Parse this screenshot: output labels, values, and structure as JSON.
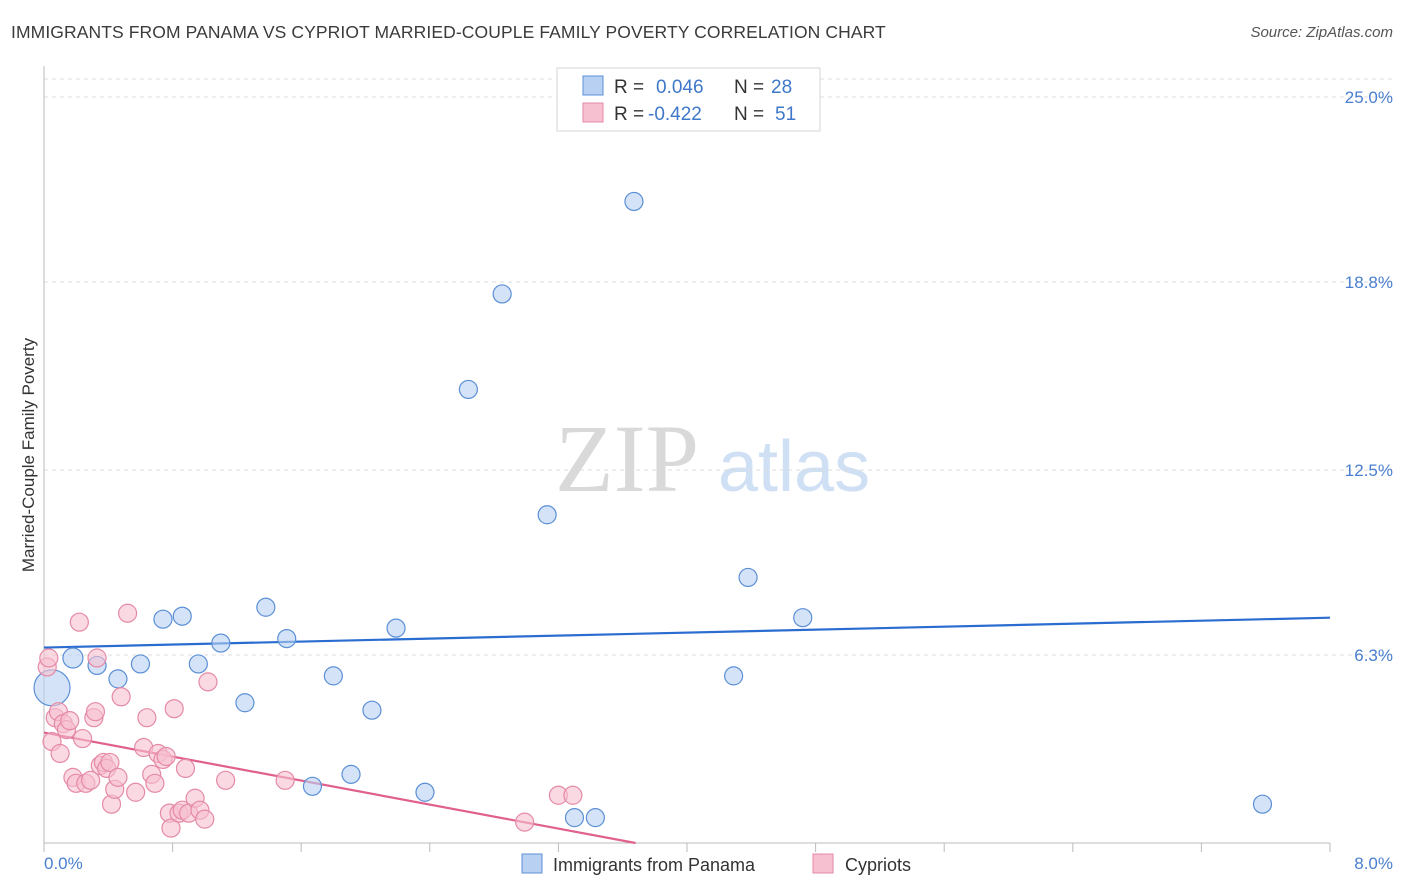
{
  "header": {
    "title": "IMMIGRANTS FROM PANAMA VS CYPRIOT MARRIED-COUPLE FAMILY POVERTY CORRELATION CHART",
    "source": "Source: ZipAtlas.com"
  },
  "watermark": {
    "zip": "ZIP",
    "atlas": "atlas"
  },
  "colors": {
    "blue_fill": "#b8d0f2",
    "blue_stroke": "#5b8fd6",
    "blue_line": "#2a6ccf",
    "pink_fill": "#f7c0d0",
    "pink_stroke": "#e58aa6",
    "pink_line": "#e0608e",
    "tick_text": "#4a7fcf",
    "grid": "#dcdcdc"
  },
  "chart_data": {
    "type": "scatter",
    "title": "IMMIGRANTS FROM PANAMA VS CYPRIOT MARRIED-COUPLE FAMILY POVERTY CORRELATION CHART",
    "xlabel": "",
    "ylabel": "Married-Couple Family Poverty",
    "xlim": [
      0.0,
      8.0
    ],
    "ylim": [
      0.0,
      25.0
    ],
    "x_tick_labels": [
      "0.0%",
      "8.0%"
    ],
    "y_ticks": [
      25.0,
      18.8,
      12.5,
      6.3
    ],
    "y_tick_labels": [
      "25.0%",
      "18.8%",
      "12.5%",
      "6.3%"
    ],
    "grid": true,
    "legend": {
      "position": "top-center",
      "rows": [
        {
          "r_label": "R =",
          "r_value": "0.046",
          "n_label": "N =",
          "n_value": "28"
        },
        {
          "r_label": "R =",
          "r_value": "-0.422",
          "n_label": "N =",
          "n_value": "51"
        }
      ]
    },
    "series": [
      {
        "name": "Immigrants from Panama",
        "color": "blue",
        "trend": {
          "x0": 0.0,
          "y0": 6.55,
          "x1": 8.0,
          "y1": 7.55
        },
        "points": [
          [
            0.05,
            5.2,
            18
          ],
          [
            0.18,
            6.2,
            10
          ],
          [
            0.33,
            5.95,
            9
          ],
          [
            0.46,
            5.5,
            9
          ],
          [
            0.6,
            6.0,
            9
          ],
          [
            0.74,
            7.5,
            9
          ],
          [
            0.86,
            7.6,
            9
          ],
          [
            0.96,
            6.0,
            9
          ],
          [
            1.1,
            6.7,
            9
          ],
          [
            1.25,
            4.7,
            9
          ],
          [
            1.38,
            7.9,
            9
          ],
          [
            1.51,
            6.85,
            9
          ],
          [
            1.67,
            1.9,
            9
          ],
          [
            1.8,
            5.6,
            9
          ],
          [
            1.91,
            2.3,
            9
          ],
          [
            2.04,
            4.45,
            9
          ],
          [
            2.19,
            7.2,
            9
          ],
          [
            2.37,
            1.7,
            9
          ],
          [
            2.64,
            15.2,
            9
          ],
          [
            2.85,
            18.4,
            9
          ],
          [
            3.13,
            11.0,
            9
          ],
          [
            3.3,
            0.85,
            9
          ],
          [
            3.43,
            0.85,
            9
          ],
          [
            3.67,
            21.5,
            9
          ],
          [
            4.29,
            5.6,
            9
          ],
          [
            4.38,
            8.9,
            9
          ],
          [
            4.72,
            7.55,
            9
          ],
          [
            7.58,
            1.3,
            9
          ]
        ]
      },
      {
        "name": "Cypriots",
        "color": "pink",
        "trend": {
          "x0": 0.0,
          "y0": 3.7,
          "x1": 3.68,
          "y1": 0.0
        },
        "points": [
          [
            0.02,
            5.9,
            9
          ],
          [
            0.03,
            6.2,
            9
          ],
          [
            0.05,
            3.4,
            9
          ],
          [
            0.07,
            4.2,
            9
          ],
          [
            0.09,
            4.4,
            9
          ],
          [
            0.1,
            3.0,
            9
          ],
          [
            0.12,
            4.0,
            9
          ],
          [
            0.14,
            3.8,
            9
          ],
          [
            0.16,
            4.1,
            9
          ],
          [
            0.18,
            2.2,
            9
          ],
          [
            0.2,
            2.0,
            9
          ],
          [
            0.22,
            7.4,
            9
          ],
          [
            0.24,
            3.5,
            9
          ],
          [
            0.26,
            2.0,
            9
          ],
          [
            0.29,
            2.1,
            9
          ],
          [
            0.31,
            4.2,
            9
          ],
          [
            0.32,
            4.4,
            9
          ],
          [
            0.33,
            6.2,
            9
          ],
          [
            0.35,
            2.6,
            9
          ],
          [
            0.37,
            2.7,
            9
          ],
          [
            0.39,
            2.5,
            9
          ],
          [
            0.41,
            2.7,
            9
          ],
          [
            0.42,
            1.3,
            9
          ],
          [
            0.44,
            1.8,
            9
          ],
          [
            0.46,
            2.2,
            9
          ],
          [
            0.48,
            4.9,
            9
          ],
          [
            0.52,
            7.7,
            9
          ],
          [
            0.57,
            1.7,
            9
          ],
          [
            0.62,
            3.2,
            9
          ],
          [
            0.64,
            4.2,
            9
          ],
          [
            0.67,
            2.3,
            9
          ],
          [
            0.69,
            2.0,
            9
          ],
          [
            0.71,
            3.0,
            9
          ],
          [
            0.74,
            2.8,
            9
          ],
          [
            0.76,
            2.9,
            9
          ],
          [
            0.78,
            1.0,
            9
          ],
          [
            0.79,
            0.5,
            9
          ],
          [
            0.81,
            4.5,
            9
          ],
          [
            0.84,
            1.0,
            9
          ],
          [
            0.86,
            1.1,
            9
          ],
          [
            0.88,
            2.5,
            9
          ],
          [
            0.9,
            1.0,
            9
          ],
          [
            0.94,
            1.5,
            9
          ],
          [
            0.97,
            1.1,
            9
          ],
          [
            1.0,
            0.8,
            9
          ],
          [
            1.02,
            5.4,
            9
          ],
          [
            1.13,
            2.1,
            9
          ],
          [
            1.5,
            2.1,
            9
          ],
          [
            2.99,
            0.7,
            9
          ],
          [
            3.2,
            1.6,
            9
          ],
          [
            3.29,
            1.6,
            9
          ]
        ]
      }
    ]
  },
  "bottom_legend": {
    "items": [
      {
        "label": "Immigrants from Panama"
      },
      {
        "label": "Cypriots"
      }
    ]
  }
}
